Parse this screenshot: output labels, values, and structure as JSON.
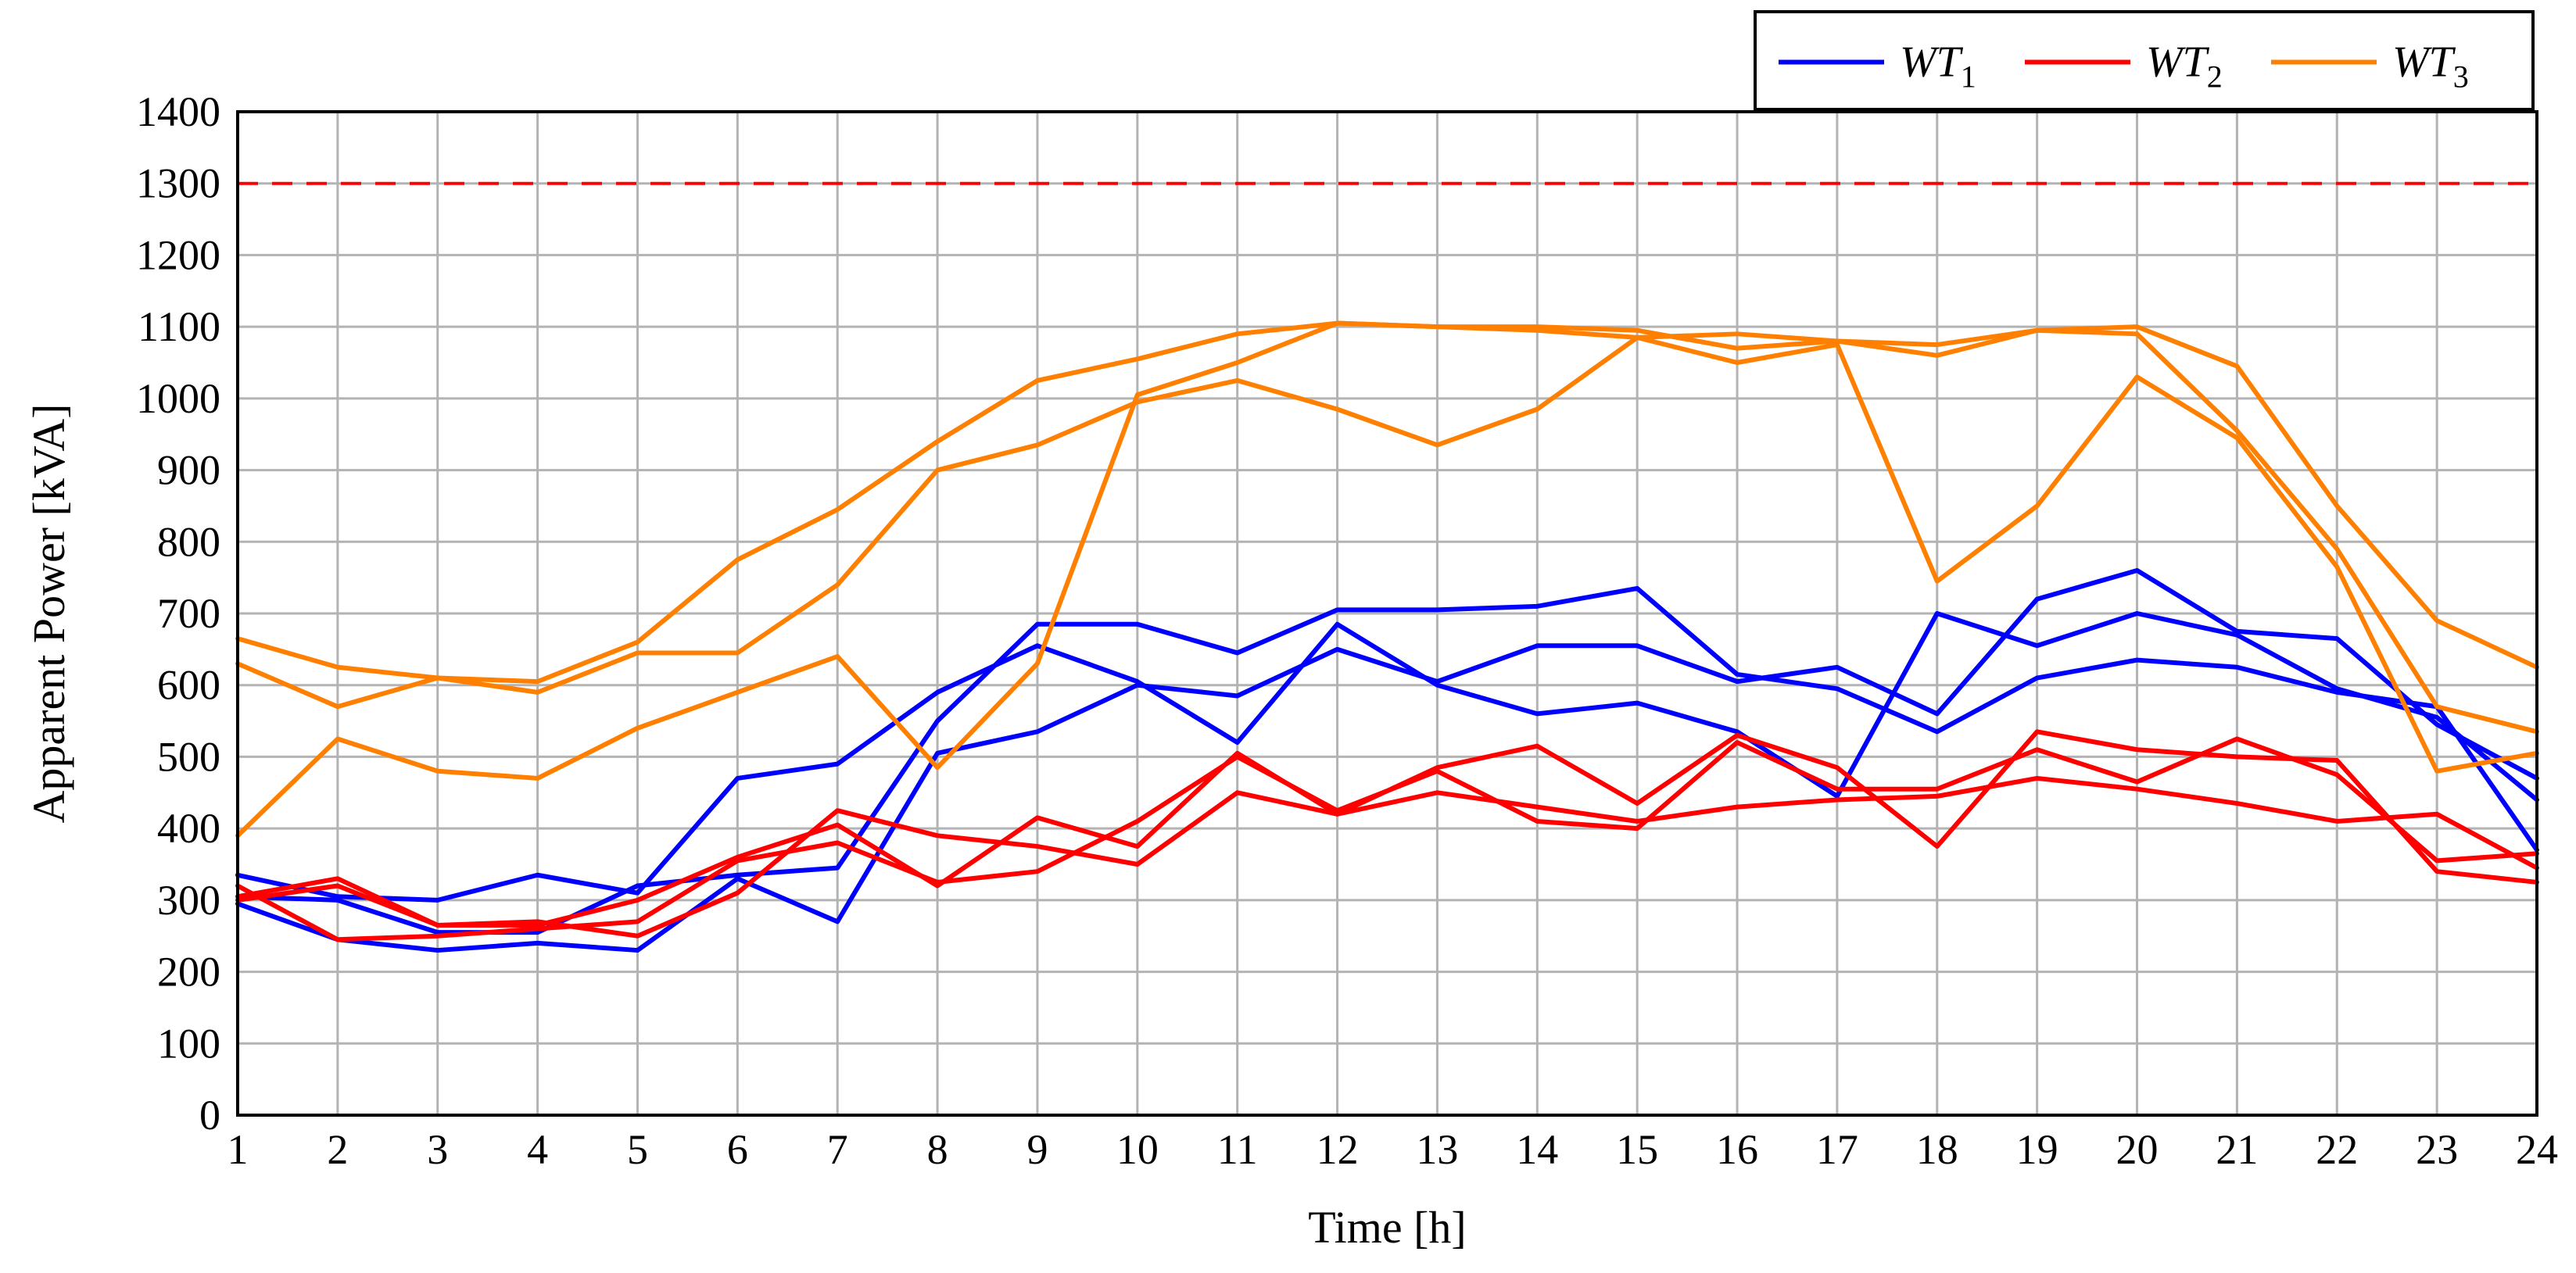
{
  "chart_data": {
    "type": "line",
    "xlabel": "Time [h]",
    "ylabel": "Apparent Power [kVA]",
    "x": [
      1,
      2,
      3,
      4,
      5,
      6,
      7,
      8,
      9,
      10,
      11,
      12,
      13,
      14,
      15,
      16,
      17,
      18,
      19,
      20,
      21,
      22,
      23,
      24
    ],
    "xlim": [
      1,
      24
    ],
    "ylim": [
      0,
      1400
    ],
    "yticks": [
      0,
      100,
      200,
      300,
      400,
      500,
      600,
      700,
      800,
      900,
      1000,
      1100,
      1200,
      1300,
      1400
    ],
    "grid": true,
    "legend_position": "top-right, above plot",
    "limit_line": {
      "value": 1300,
      "color": "#ff0000",
      "style": "dashed"
    },
    "series": [
      {
        "name": "WT1",
        "label_main": "WT",
        "label_sub": "1",
        "color": "#0000ff",
        "values": [
          335,
          305,
          300,
          335,
          310,
          470,
          490,
          590,
          655,
          605,
          520,
          685,
          600,
          560,
          575,
          535,
          445,
          700,
          655,
          700,
          670,
          595,
          555,
          440
        ]
      },
      {
        "name": "WT1",
        "label_main": "WT",
        "label_sub": "1",
        "color": "#0000ff",
        "values": [
          295,
          245,
          230,
          240,
          230,
          330,
          270,
          505,
          535,
          600,
          585,
          650,
          605,
          655,
          655,
          605,
          625,
          560,
          720,
          760,
          675,
          665,
          545,
          470
        ]
      },
      {
        "name": "WT1",
        "label_main": "WT",
        "label_sub": "1",
        "color": "#0000ff",
        "values": [
          305,
          300,
          255,
          255,
          320,
          335,
          345,
          550,
          685,
          685,
          645,
          705,
          705,
          710,
          735,
          615,
          595,
          535,
          610,
          635,
          625,
          590,
          570,
          370
        ]
      },
      {
        "name": "WT2",
        "label_main": "WT",
        "label_sub": "2",
        "color": "#ff0000",
        "values": [
          305,
          330,
          265,
          265,
          300,
          360,
          405,
          320,
          415,
          375,
          505,
          420,
          485,
          515,
          435,
          530,
          485,
          375,
          535,
          510,
          500,
          495,
          340,
          325
        ]
      },
      {
        "name": "WT2",
        "label_main": "WT",
        "label_sub": "2",
        "color": "#ff0000",
        "values": [
          320,
          245,
          250,
          260,
          270,
          355,
          380,
          325,
          340,
          410,
          500,
          425,
          480,
          410,
          400,
          520,
          455,
          455,
          510,
          465,
          525,
          475,
          355,
          365
        ]
      },
      {
        "name": "WT2",
        "label_main": "WT",
        "label_sub": "2",
        "color": "#ff0000",
        "values": [
          300,
          320,
          265,
          270,
          250,
          310,
          425,
          390,
          375,
          350,
          450,
          420,
          450,
          430,
          410,
          430,
          440,
          445,
          470,
          455,
          435,
          410,
          420,
          345
        ]
      },
      {
        "name": "WT3",
        "label_main": "WT",
        "label_sub": "3",
        "color": "#ff8000",
        "values": [
          665,
          625,
          610,
          605,
          660,
          775,
          845,
          940,
          1025,
          1055,
          1090,
          1105,
          1100,
          1095,
          1085,
          1090,
          1080,
          1075,
          1095,
          1100,
          1045,
          850,
          690,
          625
        ]
      },
      {
        "name": "WT3",
        "label_main": "WT",
        "label_sub": "3",
        "color": "#ff8000",
        "values": [
          630,
          570,
          610,
          590,
          645,
          645,
          740,
          900,
          935,
          995,
          1025,
          985,
          935,
          985,
          1085,
          1050,
          1075,
          745,
          850,
          1030,
          945,
          765,
          480,
          505
        ]
      },
      {
        "name": "WT3",
        "label_main": "WT",
        "label_sub": "3",
        "color": "#ff8000",
        "values": [
          390,
          525,
          480,
          470,
          540,
          590,
          640,
          485,
          630,
          1005,
          1050,
          1105,
          1100,
          1100,
          1095,
          1070,
          1080,
          1060,
          1095,
          1090,
          955,
          790,
          570,
          535
        ]
      }
    ],
    "legend": [
      {
        "main": "WT",
        "sub": "1",
        "color": "#0000ff"
      },
      {
        "main": "WT",
        "sub": "2",
        "color": "#ff0000"
      },
      {
        "main": "WT",
        "sub": "3",
        "color": "#ff8000"
      }
    ]
  }
}
